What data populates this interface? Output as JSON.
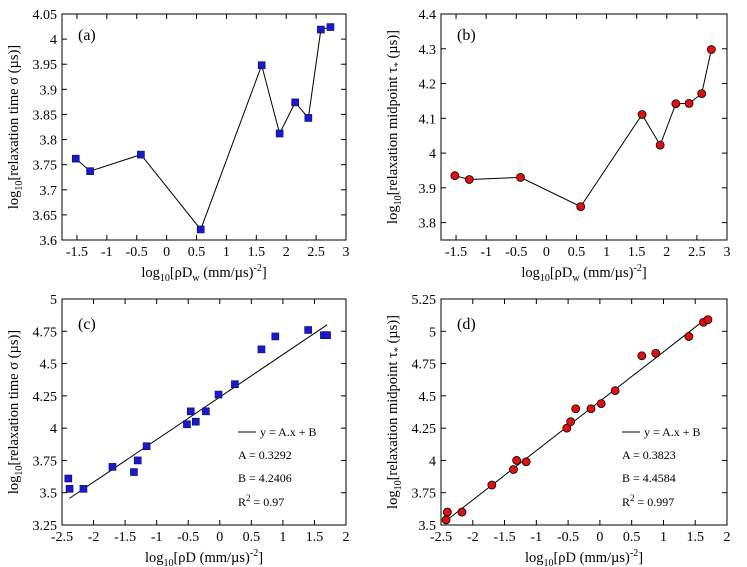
{
  "chart_data": [
    {
      "id": "a",
      "type": "line",
      "panel_label": "(a)",
      "xlabel": {
        "prefix": "log",
        "sub": "10",
        "mid": "[ρD",
        "sub2": "w",
        "tail": " (mm/µs)",
        "sup": "-2",
        "end": "]"
      },
      "ylabel": {
        "prefix": "log",
        "sub": "10",
        "mid": "[relaxation time σ (µs)]"
      },
      "xlim": [
        -1.75,
        3
      ],
      "ylim": [
        3.6,
        4.05
      ],
      "xticks": [
        -1.5,
        -1,
        -0.5,
        0,
        0.5,
        1,
        1.5,
        2,
        2.5,
        3
      ],
      "xtick_labels": [
        "-1.5",
        "-1",
        "-0.5",
        "0",
        "0.5",
        "1",
        "1.5",
        "2",
        "2.5",
        "3"
      ],
      "yticks": [
        3.6,
        3.65,
        3.7,
        3.75,
        3.8,
        3.85,
        3.9,
        3.95,
        4,
        4.05
      ],
      "ytick_labels": [
        "3.6",
        "3.65",
        "3.7",
        "3.75",
        "3.8",
        "3.85",
        "3.9",
        "3.95",
        "4",
        "4.05"
      ],
      "marker": "square",
      "marker_color": "#1a1acc",
      "connect": true,
      "x": [
        -1.52,
        -1.28,
        -0.43,
        0.57,
        1.59,
        1.89,
        2.15,
        2.37,
        2.58,
        2.74
      ],
      "y": [
        3.762,
        3.737,
        3.77,
        3.621,
        3.948,
        3.812,
        3.874,
        3.843,
        4.019,
        4.024
      ]
    },
    {
      "id": "b",
      "type": "line",
      "panel_label": "(b)",
      "xlabel": {
        "prefix": "log",
        "sub": "10",
        "mid": "[ρD",
        "sub2": "w",
        "tail": " (mm/µs)",
        "sup": "-2",
        "end": "]"
      },
      "ylabel": {
        "prefix": "log",
        "sub": "10",
        "mid": "[relaxation midpoint τ",
        "sub2": "*",
        "tail": " (µs)]"
      },
      "xlim": [
        -1.75,
        3
      ],
      "ylim": [
        3.75,
        4.4
      ],
      "xticks": [
        -1.5,
        -1,
        -0.5,
        0,
        0.5,
        1,
        1.5,
        2,
        2.5,
        3
      ],
      "xtick_labels": [
        "-1.5",
        "-1",
        "-0.5",
        "0",
        "0.5",
        "1",
        "1.5",
        "2",
        "2.5",
        "3"
      ],
      "yticks": [
        3.8,
        3.9,
        4,
        4.1,
        4.2,
        4.3,
        4.4
      ],
      "ytick_labels": [
        "3.8",
        "3.9",
        "4",
        "4.1",
        "4.2",
        "4.3",
        "4.4"
      ],
      "marker": "circle",
      "marker_color": "#e01010",
      "connect": true,
      "x": [
        -1.52,
        -1.28,
        -0.43,
        0.57,
        1.59,
        1.89,
        2.15,
        2.37,
        2.58,
        2.74
      ],
      "y": [
        3.935,
        3.924,
        3.93,
        3.846,
        4.111,
        4.023,
        4.142,
        4.143,
        4.171,
        4.298
      ]
    },
    {
      "id": "c",
      "type": "scatter",
      "panel_label": "(c)",
      "xlabel": {
        "prefix": "log",
        "sub": "10",
        "mid": "[ρD (mm/µs)",
        "sup": "-2",
        "end": "]"
      },
      "ylabel": {
        "prefix": "log",
        "sub": "10",
        "mid": "[relaxation time σ (µs)]"
      },
      "xlim": [
        -2.5,
        2
      ],
      "ylim": [
        3.25,
        5
      ],
      "xticks": [
        -2.5,
        -2,
        -1.5,
        -1,
        -0.5,
        0,
        0.5,
        1,
        1.5,
        2
      ],
      "xtick_labels": [
        "-2.5",
        "-2",
        "-1.5",
        "-1",
        "-0.5",
        "0",
        "0.5",
        "1",
        "1.5",
        "2"
      ],
      "yticks": [
        3.25,
        3.5,
        3.75,
        4,
        4.25,
        4.5,
        4.75,
        5
      ],
      "ytick_labels": [
        "3.25",
        "3.5",
        "3.75",
        "4",
        "4.25",
        "4.5",
        "4.75",
        "5"
      ],
      "marker": "square",
      "marker_color": "#1a1acc",
      "connect": false,
      "x": [
        -2.4,
        -2.38,
        -2.16,
        -1.7,
        -1.36,
        -1.3,
        -1.16,
        -0.52,
        -0.46,
        -0.38,
        -0.22,
        -0.02,
        0.24,
        0.66,
        0.88,
        1.4,
        1.65,
        1.7
      ],
      "y": [
        3.61,
        3.53,
        3.53,
        3.7,
        3.66,
        3.75,
        3.86,
        4.03,
        4.13,
        4.05,
        4.13,
        4.26,
        4.34,
        4.61,
        4.71,
        4.76,
        4.72,
        4.72
      ],
      "fit": {
        "A": 0.3292,
        "B": 4.2406,
        "x_range": [
          -2.38,
          1.7
        ]
      },
      "legend": {
        "line": "y = A.x + B",
        "a": "A = 0.3292",
        "b": "B = 4.2406",
        "r_prefix": "R",
        "r_sup": "2",
        "r_suffix": " = 0.97"
      }
    },
    {
      "id": "d",
      "type": "scatter",
      "panel_label": "(d)",
      "xlabel": {
        "prefix": "log",
        "sub": "10",
        "mid": "[ρD (mm/µs)",
        "sup": "-2",
        "end": "]"
      },
      "ylabel": {
        "prefix": "log",
        "sub": "10",
        "mid": "[relaxation midpoint τ",
        "sub2": "*",
        "tail": " (µs)]"
      },
      "xlim": [
        -2.5,
        2
      ],
      "ylim": [
        3.5,
        5.25
      ],
      "xticks": [
        -2.5,
        -2,
        -1.5,
        -1,
        -0.5,
        0,
        0.5,
        1,
        1.5,
        2
      ],
      "xtick_labels": [
        "-2.5",
        "-2",
        "-1.5",
        "-1",
        "-0.5",
        "0",
        "0.5",
        "1",
        "1.5",
        "2"
      ],
      "yticks": [
        3.5,
        3.75,
        4,
        4.25,
        4.5,
        4.75,
        5,
        5.25
      ],
      "ytick_labels": [
        "3.5",
        "3.75",
        "4",
        "4.25",
        "4.5",
        "4.75",
        "5",
        "5.25"
      ],
      "marker": "circle",
      "marker_color": "#e01010",
      "connect": false,
      "x": [
        -2.42,
        -2.4,
        -2.17,
        -1.7,
        -1.36,
        -1.31,
        -1.16,
        -0.52,
        -0.46,
        -0.38,
        -0.14,
        0.02,
        0.24,
        0.66,
        0.88,
        1.4,
        1.63,
        1.7
      ],
      "y": [
        3.54,
        3.6,
        3.6,
        3.81,
        3.93,
        4.0,
        3.99,
        4.25,
        4.3,
        4.4,
        4.4,
        4.44,
        4.54,
        4.81,
        4.83,
        4.96,
        5.07,
        5.09
      ],
      "fit": {
        "A": 0.3823,
        "B": 4.4584,
        "x_range": [
          -2.42,
          1.72
        ]
      },
      "legend": {
        "line": "y = A.x + B",
        "a": "A = 0.3823",
        "b": "B = 4.4584",
        "r_prefix": "R",
        "r_sup": "2",
        "r_suffix": " = 0.997"
      }
    }
  ]
}
